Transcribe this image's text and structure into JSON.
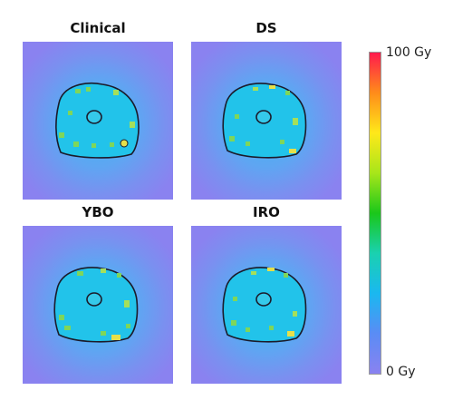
{
  "figure": {
    "panels": [
      {
        "title": "Clinical"
      },
      {
        "title": "DS"
      },
      {
        "title": "YBO"
      },
      {
        "title": "IRO"
      }
    ],
    "colorbar": {
      "max_label": "100 Gy",
      "min_label": "0 Gy",
      "colors_top_to_bottom": [
        "#ff1a4d",
        "#ff8c1a",
        "#ffe81a",
        "#a8e61a",
        "#1ac71a",
        "#1ad1b0",
        "#1ab8f0",
        "#5a8cf5",
        "#8a82f0"
      ]
    },
    "colors": {
      "background_low_dose": "#8a82f0",
      "halo": "#6fa3f5",
      "target_fill": "#22c3ea",
      "contour": "#1b1b2b",
      "hotspot_green": "#7fd65a",
      "hotspot_yellow": "#e6e04a"
    }
  }
}
